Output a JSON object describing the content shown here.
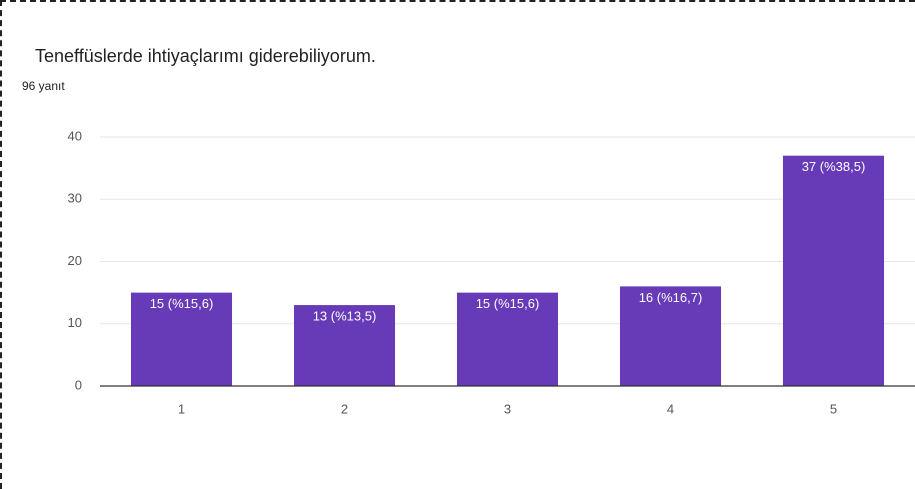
{
  "chart_data": {
    "type": "bar",
    "title": "Teneffüslerde ihtiyaçlarımı giderebiliyorum.",
    "subtitle": "96 yanıt",
    "categories": [
      "1",
      "2",
      "3",
      "4",
      "5"
    ],
    "values": [
      15,
      13,
      15,
      16,
      37
    ],
    "value_labels": [
      "15 (%15,6)",
      "13 (%13,5)",
      "15 (%15,6)",
      "16 (%16,7)",
      "37 (%38,5)"
    ],
    "color": "#673ab7",
    "ylim": [
      0,
      40
    ],
    "yticks": [
      0,
      10,
      20,
      30,
      40
    ],
    "grid": true
  }
}
